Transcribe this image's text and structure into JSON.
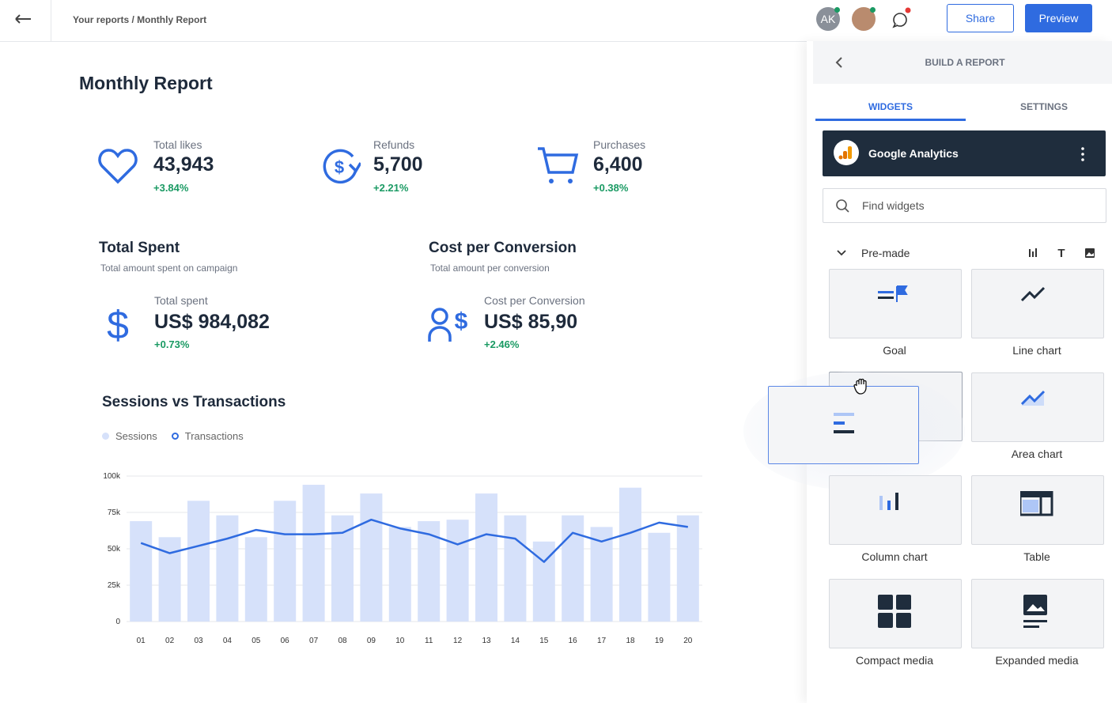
{
  "header": {
    "breadcrumb": "Your reports / Monthly Report",
    "avatar_initials": "AK",
    "share": "Share",
    "preview": "Preview"
  },
  "report": {
    "title": "Monthly Report",
    "kpis": [
      {
        "label": "Total likes",
        "value": "43,943",
        "change": "+3.84%"
      },
      {
        "label": "Refunds",
        "value": "5,700",
        "change": "+2.21%"
      },
      {
        "label": "Purchases",
        "value": "6,400",
        "change": "+0.38%"
      }
    ],
    "sections": [
      {
        "title": "Total Spent",
        "subtitle": "Total amount spent on campaign",
        "label": "Total spent",
        "value": "US$ 984,082",
        "change": "+0.73%"
      },
      {
        "title": "Cost per Conversion",
        "subtitle": "Total amount per conversion",
        "label": "Cost per Conversion",
        "value": "US$ 85,90",
        "change": "+2.46%"
      }
    ]
  },
  "chart_data": {
    "type": "bar",
    "title": "Sessions vs Transactions",
    "categories": [
      "01",
      "02",
      "03",
      "04",
      "05",
      "06",
      "07",
      "08",
      "09",
      "10",
      "11",
      "12",
      "13",
      "14",
      "15",
      "16",
      "17",
      "18",
      "19",
      "20"
    ],
    "series": [
      {
        "name": "Sessions",
        "color": "#d6e1fa",
        "values": [
          69000,
          58000,
          83000,
          73000,
          58000,
          83000,
          94000,
          73000,
          88000,
          65000,
          69000,
          70000,
          88000,
          73000,
          55000,
          73000,
          65000,
          92000,
          61000,
          73000
        ]
      },
      {
        "name": "Transactions",
        "type": "line",
        "color": "#2f6be0",
        "values": [
          54000,
          47000,
          52000,
          57000,
          63000,
          60000,
          60000,
          61000,
          70000,
          64000,
          60000,
          53000,
          60000,
          57000,
          41000,
          61000,
          55000,
          61000,
          68000,
          65000
        ]
      }
    ],
    "ylim": [
      0,
      100000
    ],
    "yticks": [
      0,
      {
        "value": 25000,
        "label": "25k"
      },
      {
        "value": 50000,
        "label": "50k"
      },
      {
        "value": 75000,
        "label": "75k"
      },
      {
        "value": 100000,
        "label": "100k"
      }
    ],
    "grid": true
  },
  "panel": {
    "title": "BUILD A REPORT",
    "tabs": [
      "WIDGETS",
      "SETTINGS"
    ],
    "source": "Google Analytics",
    "search_placeholder": "Find widgets",
    "section": "Pre-made",
    "widgets": [
      "Goal",
      "Line chart",
      "Area chart",
      "Column chart",
      "Table",
      "Compact media",
      "Expanded media"
    ]
  }
}
